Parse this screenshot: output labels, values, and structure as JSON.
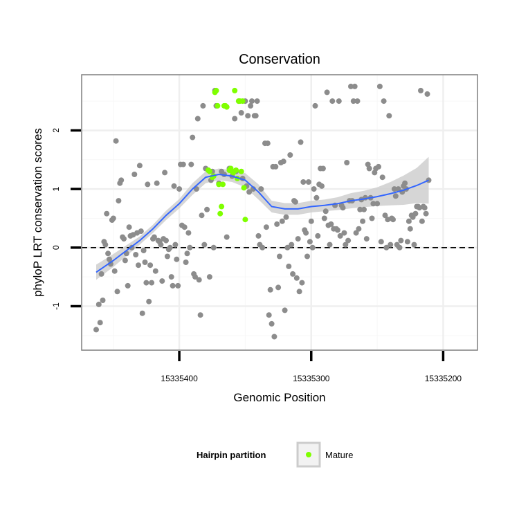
{
  "chart_data": {
    "type": "scatter",
    "title": "Conservation",
    "xlabel": "Genomic Position",
    "ylabel": "phyloP LRT conservation scores",
    "x_reversed": true,
    "xlim": [
      15335474,
      15335174
    ],
    "ylim": [
      -1.75,
      2.95
    ],
    "x_ticks": [
      15335400,
      15335300,
      15335200
    ],
    "x_tick_labels": [
      "15335400",
      "15335300",
      "15335200"
    ],
    "y_ticks": [
      -1,
      0,
      1,
      2
    ],
    "y_tick_labels": [
      "-1",
      "0",
      "1",
      "2"
    ],
    "reference_line": {
      "y": 0,
      "style": "dashed"
    },
    "grid": true,
    "legend": {
      "title": "Hairpin partition",
      "position": "bottom",
      "entries": [
        {
          "label": "Mature",
          "color": "#7fff00"
        }
      ]
    },
    "colors": {
      "points": "#8c8c8c",
      "mature": "#7fff00",
      "smooth": "#3366ff",
      "ribbon": "#cccccc"
    },
    "series": [
      {
        "name": "",
        "points": [
          [
            15335463,
            -1.4
          ],
          [
            15335461,
            -0.97
          ],
          [
            15335460,
            -1.28
          ],
          [
            15335459,
            -0.45
          ],
          [
            15335458,
            -0.9
          ],
          [
            15335457,
            0.1
          ],
          [
            15335456,
            0.05
          ],
          [
            15335455,
            0.58
          ],
          [
            15335454,
            -0.1
          ],
          [
            15335453,
            -0.2
          ],
          [
            15335452,
            -0.28
          ],
          [
            15335451,
            0.47
          ],
          [
            15335450,
            0.5
          ],
          [
            15335449,
            -0.4
          ],
          [
            15335448,
            1.82
          ],
          [
            15335447,
            -0.75
          ],
          [
            15335446,
            0.8
          ],
          [
            15335445,
            1.1
          ],
          [
            15335444,
            1.15
          ],
          [
            15335443,
            0.18
          ],
          [
            15335442,
            0.15
          ],
          [
            15335441,
            -0.22
          ],
          [
            15335440,
            -0.1
          ],
          [
            15335439,
            -0.65
          ],
          [
            15335438,
            0.35
          ],
          [
            15335437,
            0.2
          ],
          [
            15335436,
            0.0
          ],
          [
            15335435,
            0.22
          ],
          [
            15335434,
            1.25
          ],
          [
            15335433,
            -0.12
          ],
          [
            15335432,
            0.25
          ],
          [
            15335431,
            -0.3
          ],
          [
            15335430,
            1.4
          ],
          [
            15335429,
            0.28
          ],
          [
            15335428,
            -1.12
          ],
          [
            15335427,
            -0.05
          ],
          [
            15335426,
            -0.25
          ],
          [
            15335425,
            -0.6
          ],
          [
            15335424,
            1.08
          ],
          [
            15335423,
            -0.92
          ],
          [
            15335422,
            -0.3
          ],
          [
            15335421,
            -0.6
          ],
          [
            15335420,
            0.15
          ],
          [
            15335419,
            0.18
          ],
          [
            15335418,
            -0.4
          ],
          [
            15335417,
            1.1
          ],
          [
            15335416,
            0.12
          ],
          [
            15335415,
            0.1
          ],
          [
            15335414,
            0.05
          ],
          [
            15335413,
            -0.57
          ],
          [
            15335412,
            0.15
          ],
          [
            15335411,
            1.28
          ],
          [
            15335410,
            0.12
          ],
          [
            15335409,
            -0.15
          ],
          [
            15335408,
            -0.03
          ],
          [
            15335407,
            0.0
          ],
          [
            15335406,
            -0.5
          ],
          [
            15335405,
            -0.65
          ],
          [
            15335404,
            1.05
          ],
          [
            15335403,
            0.05
          ],
          [
            15335402,
            -0.2
          ],
          [
            15335401,
            -0.65
          ],
          [
            15335400,
            1.0
          ],
          [
            15335399,
            1.42
          ],
          [
            15335398,
            0.38
          ],
          [
            15335397,
            1.42
          ],
          [
            15335396,
            0.35
          ],
          [
            15335395,
            -0.25
          ],
          [
            15335394,
            -0.1
          ],
          [
            15335393,
            0.25
          ],
          [
            15335392,
            0.0
          ],
          [
            15335391,
            1.42
          ],
          [
            15335390,
            1.88
          ],
          [
            15335389,
            -0.45
          ],
          [
            15335388,
            -0.5
          ],
          [
            15335387,
            1.0
          ],
          [
            15335386,
            2.2
          ],
          [
            15335385,
            -0.55
          ],
          [
            15335384,
            -1.15
          ],
          [
            15335383,
            0.55
          ],
          [
            15335382,
            2.42
          ],
          [
            15335381,
            0.05
          ],
          [
            15335380,
            1.35
          ],
          [
            15335379,
            0.65
          ],
          [
            15335378,
            1.32
          ],
          [
            15335377,
            -0.5
          ],
          [
            15335376,
            1.15
          ],
          [
            15335375,
            1.3
          ],
          [
            15335374,
            0.0
          ],
          [
            15335373,
            2.68
          ],
          [
            15335372,
            2.42
          ],
          [
            15335370,
            1.1
          ],
          [
            15335368,
            1.3
          ],
          [
            15335366,
            1.25
          ],
          [
            15335364,
            0.18
          ],
          [
            15335362,
            1.35
          ],
          [
            15335360,
            1.22
          ],
          [
            15335358,
            2.2
          ],
          [
            15335357,
            1.3
          ],
          [
            15335355,
            2.5
          ],
          [
            15335353,
            2.3
          ],
          [
            15335352,
            1.18
          ],
          [
            15335350,
            2.5
          ],
          [
            15335349,
            1.05
          ],
          [
            15335348,
            2.25
          ],
          [
            15335347,
            0.95
          ],
          [
            15335346,
            2.42
          ],
          [
            15335345,
            2.5
          ],
          [
            15335344,
            1.0
          ],
          [
            15335343,
            2.25
          ],
          [
            15335342,
            2.25
          ],
          [
            15335341,
            2.5
          ],
          [
            15335340,
            0.2
          ],
          [
            15335339,
            0.05
          ],
          [
            15335338,
            1.0
          ],
          [
            15335337,
            0.0
          ],
          [
            15335335,
            1.78
          ],
          [
            15335334,
            0.35
          ],
          [
            15335333,
            1.78
          ],
          [
            15335332,
            -1.15
          ],
          [
            15335331,
            -0.72
          ],
          [
            15335330,
            -1.3
          ],
          [
            15335329,
            1.38
          ],
          [
            15335328,
            -1.52
          ],
          [
            15335327,
            1.38
          ],
          [
            15335326,
            0.4
          ],
          [
            15335325,
            -0.68
          ],
          [
            15335324,
            -0.15
          ],
          [
            15335323,
            1.45
          ],
          [
            15335322,
            0.45
          ],
          [
            15335321,
            1.47
          ],
          [
            15335320,
            -1.07
          ],
          [
            15335319,
            0.52
          ],
          [
            15335318,
            0.0
          ],
          [
            15335317,
            -0.32
          ],
          [
            15335316,
            1.58
          ],
          [
            15335315,
            0.05
          ],
          [
            15335314,
            -0.45
          ],
          [
            15335313,
            0.8
          ],
          [
            15335312,
            0.78
          ],
          [
            15335311,
            -0.52
          ],
          [
            15335310,
            0.15
          ],
          [
            15335309,
            -0.75
          ],
          [
            15335308,
            1.8
          ],
          [
            15335307,
            -0.6
          ],
          [
            15335306,
            1.12
          ],
          [
            15335305,
            0.3
          ],
          [
            15335304,
            0.25
          ],
          [
            15335303,
            -0.15
          ],
          [
            15335302,
            1.12
          ],
          [
            15335301,
            0.1
          ],
          [
            15335300,
            0.45
          ],
          [
            15335299,
            0.0
          ],
          [
            15335298,
            1.0
          ],
          [
            15335297,
            2.42
          ],
          [
            15335296,
            0.85
          ],
          [
            15335295,
            0.2
          ],
          [
            15335294,
            1.08
          ],
          [
            15335293,
            1.35
          ],
          [
            15335292,
            1.05
          ],
          [
            15335291,
            1.35
          ],
          [
            15335290,
            0.5
          ],
          [
            15335289,
            0.62
          ],
          [
            15335288,
            2.65
          ],
          [
            15335287,
            0.38
          ],
          [
            15335286,
            0.05
          ],
          [
            15335285,
            0.4
          ],
          [
            15335284,
            2.5
          ],
          [
            15335283,
            0.32
          ],
          [
            15335282,
            0.72
          ],
          [
            15335281,
            0.32
          ],
          [
            15335280,
            0.3
          ],
          [
            15335279,
            2.5
          ],
          [
            15335278,
            0.2
          ],
          [
            15335277,
            0.72
          ],
          [
            15335276,
            0.68
          ],
          [
            15335275,
            0.25
          ],
          [
            15335274,
            0.05
          ],
          [
            15335273,
            1.45
          ],
          [
            15335272,
            0.12
          ],
          [
            15335271,
            0.8
          ],
          [
            15335270,
            2.75
          ],
          [
            15335269,
            0.8
          ],
          [
            15335268,
            2.5
          ],
          [
            15335267,
            2.75
          ],
          [
            15335266,
            0.25
          ],
          [
            15335265,
            2.5
          ],
          [
            15335264,
            0.32
          ],
          [
            15335263,
            0.65
          ],
          [
            15335262,
            0.82
          ],
          [
            15335261,
            0.45
          ],
          [
            15335260,
            0.65
          ],
          [
            15335259,
            0.85
          ],
          [
            15335258,
            0.15
          ],
          [
            15335257,
            1.42
          ],
          [
            15335256,
            1.35
          ],
          [
            15335255,
            0.85
          ],
          [
            15335254,
            0.5
          ],
          [
            15335253,
            0.75
          ],
          [
            15335252,
            1.28
          ],
          [
            15335251,
            1.35
          ],
          [
            15335250,
            0.75
          ],
          [
            15335249,
            1.38
          ],
          [
            15335248,
            2.75
          ],
          [
            15335247,
            0.1
          ],
          [
            15335246,
            1.2
          ],
          [
            15335245,
            2.5
          ],
          [
            15335244,
            0.55
          ],
          [
            15335243,
            0.0
          ],
          [
            15335242,
            0.48
          ],
          [
            15335241,
            2.25
          ],
          [
            15335240,
            0.05
          ],
          [
            15335239,
            0.5
          ],
          [
            15335238,
            0.48
          ],
          [
            15335237,
            1.0
          ],
          [
            15335236,
            0.88
          ],
          [
            15335235,
            0.05
          ],
          [
            15335234,
            1.0
          ],
          [
            15335233,
            0.0
          ],
          [
            15335232,
            0.12
          ],
          [
            15335231,
            0.95
          ],
          [
            15335230,
            1.05
          ],
          [
            15335229,
            1.1
          ],
          [
            15335228,
            1.0
          ],
          [
            15335227,
            0.1
          ],
          [
            15335226,
            0.45
          ],
          [
            15335225,
            0.32
          ],
          [
            15335224,
            0.55
          ],
          [
            15335223,
            0.52
          ],
          [
            15335222,
            0.05
          ],
          [
            15335221,
            0.58
          ],
          [
            15335220,
            0.7
          ],
          [
            15335219,
            0.7
          ],
          [
            15335218,
            0.68
          ],
          [
            15335217,
            2.68
          ],
          [
            15335216,
            0.45
          ],
          [
            15335215,
            0.7
          ],
          [
            15335214,
            0.68
          ],
          [
            15335213,
            0.58
          ],
          [
            15335212,
            2.62
          ],
          [
            15335211,
            1.15
          ]
        ]
      },
      {
        "name": "Mature",
        "points": [
          [
            15335378,
            1.32
          ],
          [
            15335377,
            1.3
          ],
          [
            15335375,
            1.2
          ],
          [
            15335374,
            1.22
          ],
          [
            15335373,
            2.65
          ],
          [
            15335372,
            2.68
          ],
          [
            15335371,
            2.42
          ],
          [
            15335370,
            1.08
          ],
          [
            15335369,
            0.58
          ],
          [
            15335368,
            0.7
          ],
          [
            15335367,
            1.08
          ],
          [
            15335366,
            2.42
          ],
          [
            15335365,
            2.42
          ],
          [
            15335364,
            2.4
          ],
          [
            15335362,
            1.32
          ],
          [
            15335361,
            1.35
          ],
          [
            15335360,
            1.3
          ],
          [
            15335359,
            1.28
          ],
          [
            15335358,
            2.68
          ],
          [
            15335357,
            1.32
          ],
          [
            15335356,
            1.18
          ],
          [
            15335355,
            2.5
          ],
          [
            15335354,
            2.5
          ],
          [
            15335353,
            1.3
          ],
          [
            15335352,
            2.5
          ],
          [
            15335351,
            1.02
          ],
          [
            15335350,
            0.48
          ]
        ]
      }
    ],
    "smooth_curve": {
      "x": [
        15335463,
        15335450,
        15335440,
        15335430,
        15335420,
        15335410,
        15335400,
        15335390,
        15335380,
        15335370,
        15335360,
        15335350,
        15335340,
        15335330,
        15335320,
        15335310,
        15335300,
        15335290,
        15335280,
        15335270,
        15335260,
        15335250,
        15335240,
        15335230,
        15335220,
        15335211
      ],
      "y": [
        -0.42,
        -0.22,
        -0.05,
        0.12,
        0.32,
        0.55,
        0.75,
        1.0,
        1.2,
        1.25,
        1.22,
        1.15,
        0.95,
        0.7,
        0.66,
        0.66,
        0.7,
        0.72,
        0.75,
        0.8,
        0.83,
        0.87,
        0.92,
        0.98,
        1.06,
        1.15
      ],
      "lower": [
        -0.55,
        -0.33,
        -0.14,
        0.05,
        0.25,
        0.47,
        0.67,
        0.9,
        1.1,
        1.15,
        1.12,
        1.03,
        0.82,
        0.6,
        0.56,
        0.56,
        0.6,
        0.62,
        0.64,
        0.67,
        0.69,
        0.71,
        0.72,
        0.73,
        0.76,
        0.75
      ],
      "upper": [
        -0.29,
        -0.11,
        0.04,
        0.19,
        0.39,
        0.63,
        0.83,
        1.1,
        1.3,
        1.35,
        1.32,
        1.27,
        1.08,
        0.8,
        0.76,
        0.76,
        0.8,
        0.82,
        0.86,
        0.93,
        0.97,
        1.03,
        1.12,
        1.23,
        1.36,
        1.55
      ]
    }
  }
}
